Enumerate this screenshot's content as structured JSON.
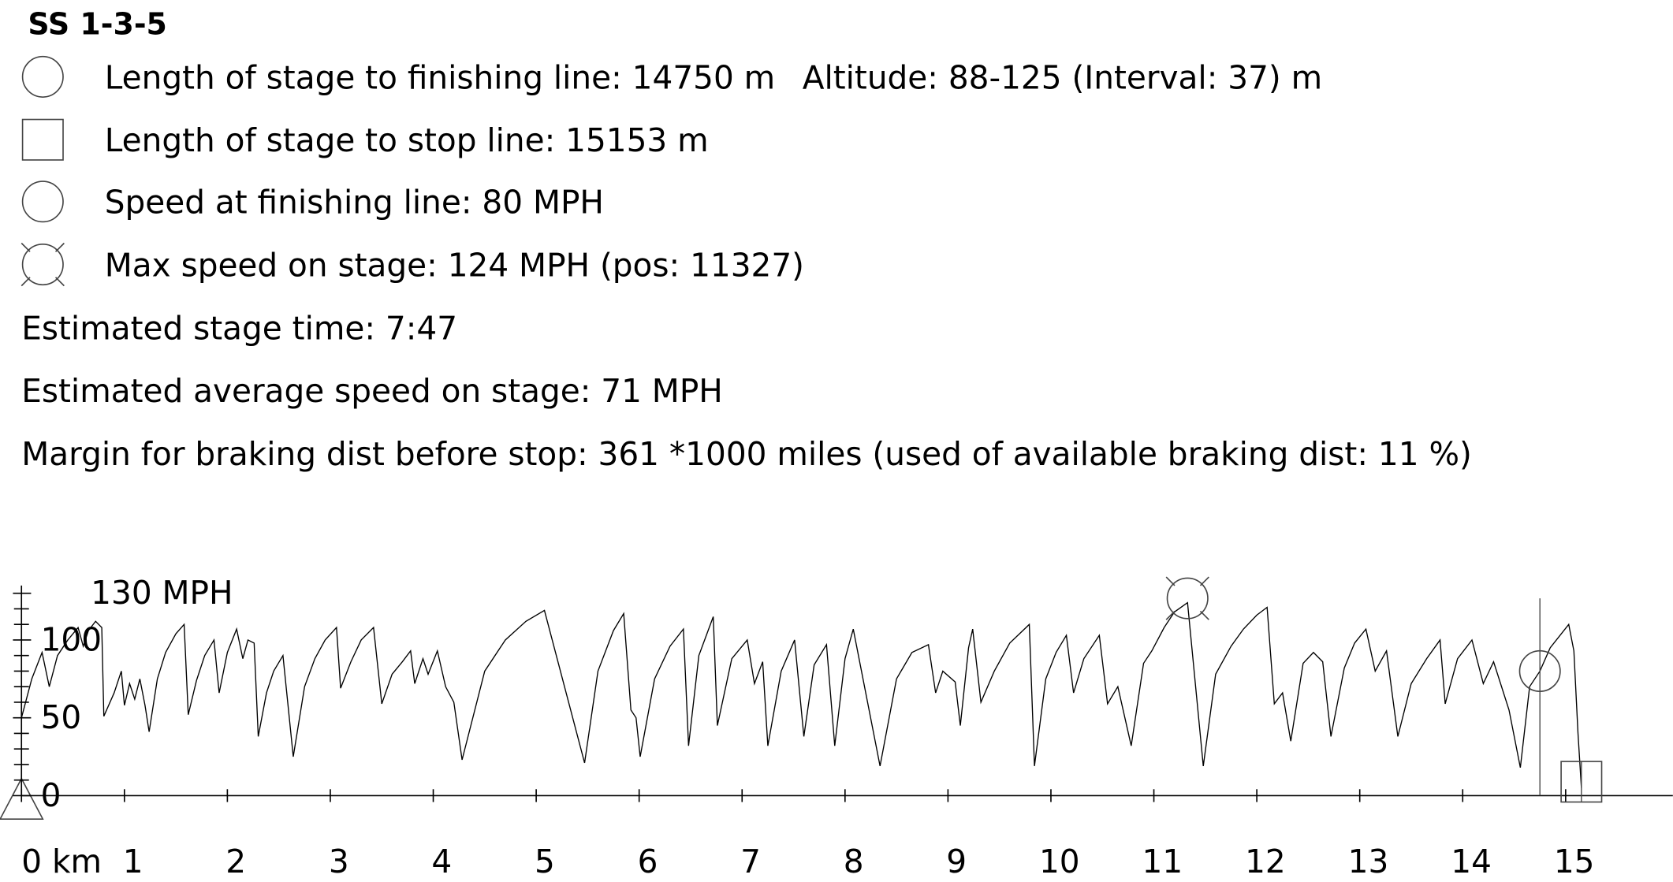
{
  "chart_data": {
    "type": "line",
    "title": "SS 1-3-5",
    "info": [
      "Length of stage to finishing line: 14750 m",
      "Length of stage to stop line: 15153 m",
      "Speed at finishing line: 80 MPH",
      "Max speed on stage: 124 MPH (pos: 11327)",
      "Estimated stage time: 7:47",
      "Estimated average speed on stage: 71 MPH",
      "Margin for braking dist before stop: 361 *1000 miles (used of available braking dist: 11 %)"
    ],
    "altitude": "Altitude: 88-125 (Interval: 37) m",
    "altitude_color": "#0000ff",
    "color": "#000000",
    "xlim": [
      0,
      16
    ],
    "ylim": [
      0,
      135
    ],
    "xticks": [
      {
        "value": 0,
        "label": "0 km"
      },
      1,
      2,
      3,
      4,
      5,
      6,
      7,
      8,
      9,
      10,
      11,
      12,
      13,
      14,
      15
    ],
    "yticks": [
      0,
      50,
      100,
      {
        "value": 130,
        "label": "130 MPH"
      }
    ],
    "minor_yticks": [
      10,
      20,
      30,
      40,
      60,
      70,
      80,
      90,
      110,
      120
    ],
    "markers": {
      "finish": {
        "x": 14.75,
        "y": 80
      },
      "stop": {
        "x": 15.153,
        "y": 0
      },
      "max": {
        "x": 11.327,
        "y": 124
      }
    },
    "x": [
      0.0,
      0.1,
      0.2,
      0.27,
      0.35,
      0.45,
      0.55,
      0.6,
      0.65,
      0.72,
      0.78,
      0.8,
      0.9,
      0.97,
      1.0,
      1.05,
      1.1,
      1.15,
      1.2,
      1.24,
      1.32,
      1.4,
      1.5,
      1.58,
      1.62,
      1.7,
      1.78,
      1.87,
      1.92,
      2.0,
      2.09,
      2.15,
      2.2,
      2.26,
      2.3,
      2.38,
      2.45,
      2.54,
      2.64,
      2.75,
      2.85,
      2.95,
      3.06,
      3.1,
      3.2,
      3.3,
      3.42,
      3.5,
      3.6,
      3.7,
      3.78,
      3.82,
      3.9,
      3.95,
      4.04,
      4.12,
      4.2,
      4.28,
      4.5,
      4.7,
      4.9,
      5.08,
      5.47,
      5.6,
      5.75,
      5.85,
      5.92,
      5.97,
      6.01,
      6.15,
      6.3,
      6.43,
      6.48,
      6.58,
      6.72,
      6.76,
      6.9,
      7.05,
      7.12,
      7.2,
      7.25,
      7.38,
      7.51,
      7.6,
      7.7,
      7.82,
      7.9,
      8.0,
      8.08,
      8.34,
      8.5,
      8.65,
      8.81,
      8.88,
      8.95,
      9.07,
      9.12,
      9.2,
      9.24,
      9.32,
      9.45,
      9.6,
      9.79,
      9.84,
      9.95,
      10.05,
      10.15,
      10.22,
      10.32,
      10.47,
      10.55,
      10.65,
      10.78,
      10.9,
      10.98,
      11.1,
      11.2,
      11.327,
      11.48,
      11.6,
      11.75,
      11.87,
      12.0,
      12.1,
      12.17,
      12.25,
      12.33,
      12.45,
      12.55,
      12.64,
      12.72,
      12.85,
      12.95,
      13.06,
      13.15,
      13.26,
      13.37,
      13.5,
      13.65,
      13.78,
      13.83,
      13.95,
      14.09,
      14.2,
      14.3,
      14.45,
      14.56,
      14.65,
      14.75,
      14.85,
      15.03,
      15.08,
      15.12,
      15.153
    ],
    "values": [
      50,
      75,
      92,
      70,
      90,
      100,
      108,
      96,
      106,
      112,
      108,
      51,
      66,
      80,
      58,
      72,
      62,
      75,
      58,
      41,
      75,
      92,
      104,
      110,
      52,
      74,
      90,
      100,
      66,
      92,
      107,
      88,
      100,
      98,
      38,
      66,
      80,
      90,
      25,
      70,
      88,
      100,
      108,
      69,
      86,
      100,
      108,
      59,
      78,
      86,
      93,
      72,
      88,
      78,
      93,
      70,
      60,
      23,
      80,
      100,
      112,
      119,
      21,
      80,
      106,
      117,
      55,
      50,
      25,
      75,
      96,
      107,
      32,
      90,
      115,
      45,
      88,
      100,
      72,
      86,
      32,
      80,
      100,
      38,
      84,
      97,
      32,
      88,
      107,
      19,
      75,
      92,
      97,
      66,
      80,
      73,
      45,
      95,
      107,
      60,
      80,
      98,
      110,
      19,
      75,
      92,
      103,
      66,
      88,
      103,
      59,
      70,
      32,
      85,
      93,
      108,
      118,
      124,
      19,
      78,
      96,
      107,
      116,
      121,
      59,
      66,
      35,
      85,
      92,
      86,
      38,
      82,
      98,
      107,
      80,
      93,
      38,
      72,
      88,
      100,
      59,
      88,
      100,
      72,
      86,
      55,
      18,
      70,
      80,
      95,
      110,
      93,
      40,
      5
    ]
  }
}
